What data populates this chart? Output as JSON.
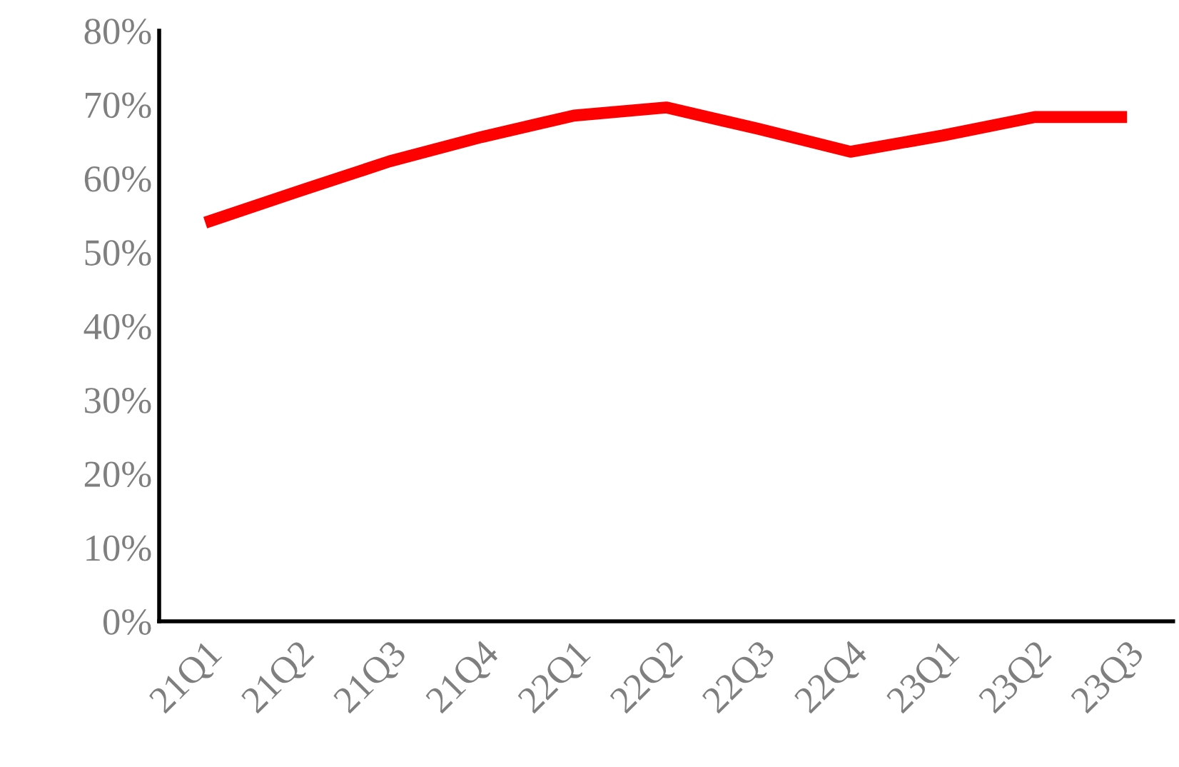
{
  "chart_data": {
    "type": "line",
    "categories": [
      "21Q1",
      "21Q2",
      "21Q3",
      "21Q4",
      "22Q1",
      "22Q2",
      "22Q3",
      "22Q4",
      "23Q1",
      "23Q2",
      "23Q3"
    ],
    "series": [
      {
        "color": "#ff0000",
        "values": [
          54,
          58.2,
          62.3,
          65.6,
          68.5,
          69.6,
          66.7,
          63.6,
          65.8,
          68.3,
          68.3
        ]
      }
    ],
    "ylim": [
      0,
      80
    ],
    "yticks": [
      {
        "value": 0,
        "label": "0%"
      },
      {
        "value": 10,
        "label": "10%"
      },
      {
        "value": 20,
        "label": "20%"
      },
      {
        "value": 30,
        "label": "30%"
      },
      {
        "value": 40,
        "label": "40%"
      },
      {
        "value": 50,
        "label": "50%"
      },
      {
        "value": 60,
        "label": "60%"
      },
      {
        "value": 70,
        "label": "70%"
      },
      {
        "value": 80,
        "label": "80%"
      }
    ],
    "grid": false,
    "legend": false,
    "marker": "none",
    "line_style": "solid"
  }
}
